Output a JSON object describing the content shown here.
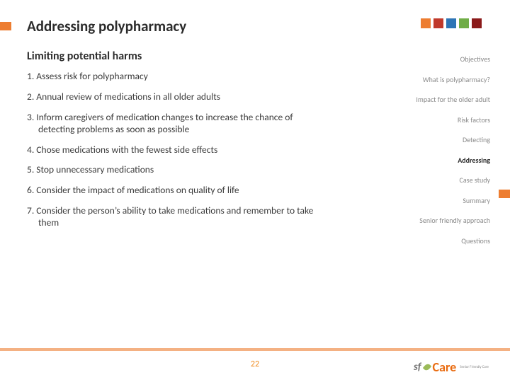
{
  "colors": {
    "orange": "#ed7d31",
    "red": "#c0392b",
    "blue": "#2e75b6",
    "green": "#70ad47",
    "dkred": "#8b1a1a",
    "footer_bar": "#f4b183",
    "leaf": "#9bbb59",
    "text": "#3a3a3a",
    "nav_gray": "#8a8a8a"
  },
  "title": "Addressing polypharmacy",
  "subtitle": "Limiting potential harms",
  "list": [
    "1. Assess risk for polypharmacy",
    "2. Annual review of medications in all older adults",
    "3. Inform caregivers of medication changes to increase the chance of detecting problems as soon as possible",
    "4. Chose medications with the fewest side effects",
    "5. Stop unnecessary medications",
    "6. Consider the impact of medications on quality of life",
    "7. Consider the person’s ability to take medications and remember to take them"
  ],
  "nav": {
    "items": [
      "Objectives",
      "What is polypharmacy?",
      "Impact for the older adult",
      "Risk factors",
      "Detecting",
      "Addressing",
      "Case study",
      "Summary",
      "Senior friendly approach",
      "Questions"
    ],
    "active_index": 5
  },
  "slide_number": "22",
  "logo": {
    "sf": "sf",
    "care": "Care",
    "sub": "Senior Friendly Care"
  },
  "header_squares": [
    "#ed7d31",
    "#c0392b",
    "#2e75b6",
    "#70ad47",
    "#8b1a1a"
  ]
}
